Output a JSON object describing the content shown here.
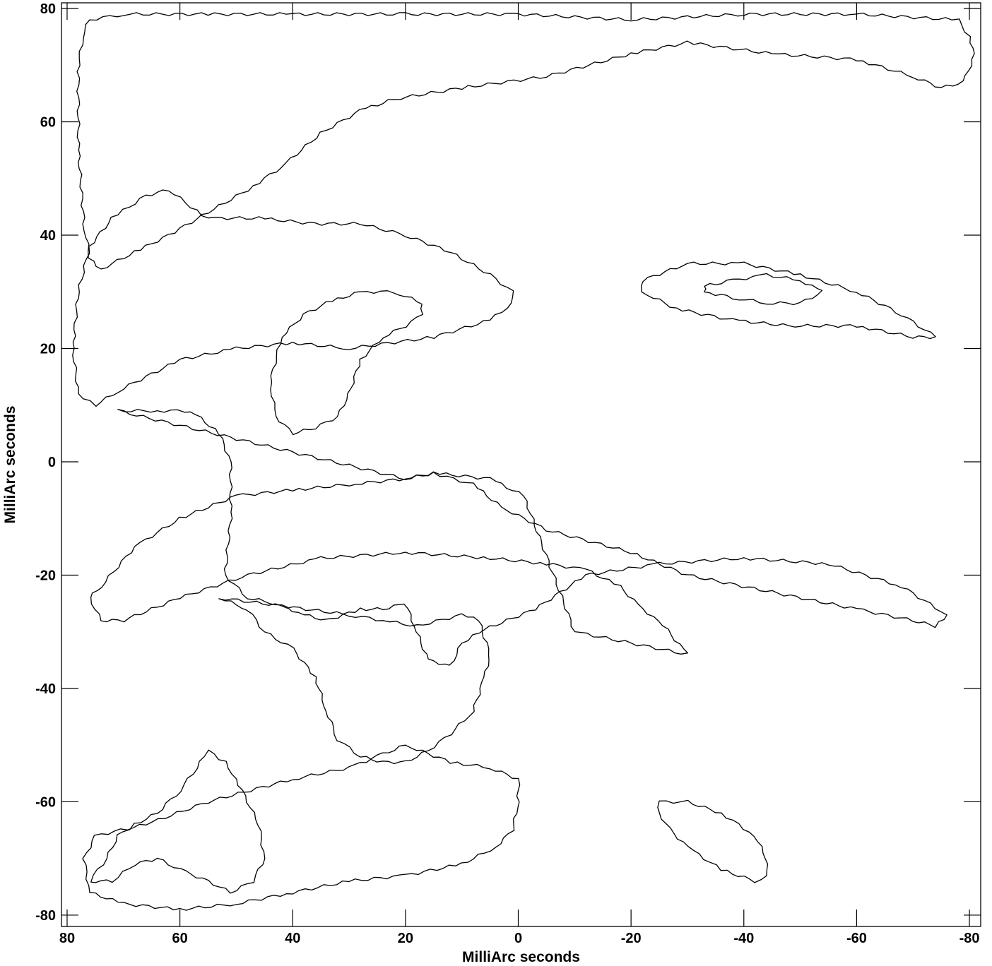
{
  "chart_data": {
    "type": "contour",
    "title": "",
    "xlabel": "MilliArc seconds",
    "ylabel": "MilliArc seconds",
    "xlim": [
      81,
      -82
    ],
    "ylim": [
      -82,
      81
    ],
    "x_ticks": [
      80,
      60,
      40,
      20,
      0,
      -20,
      -40,
      -60,
      -80
    ],
    "y_ticks": [
      80,
      60,
      40,
      20,
      0,
      -20,
      -40,
      -60,
      -80
    ],
    "x_tick_labels": [
      "80",
      "60",
      "40",
      "20",
      "0",
      "-20",
      "-40",
      "-60",
      "-80"
    ],
    "y_tick_labels": [
      "80",
      "60",
      "40",
      "20",
      "0",
      "-20",
      "-40",
      "-60",
      "-80"
    ],
    "grid": false,
    "contour_color": "#000000",
    "contours": [
      {
        "id": "upper-band",
        "points": [
          [
            76,
            78
          ],
          [
            70,
            79
          ],
          [
            55,
            79
          ],
          [
            40,
            79
          ],
          [
            20,
            79
          ],
          [
            0,
            79
          ],
          [
            -20,
            78
          ],
          [
            -40,
            79
          ],
          [
            -60,
            79
          ],
          [
            -78,
            78
          ],
          [
            -80,
            75
          ],
          [
            -81,
            72
          ],
          [
            -79,
            67
          ],
          [
            -75,
            66
          ],
          [
            -70,
            68
          ],
          [
            -60,
            71
          ],
          [
            -45,
            72
          ],
          [
            -30,
            74
          ],
          [
            -20,
            72
          ],
          [
            -5,
            68
          ],
          [
            10,
            66
          ],
          [
            22,
            64
          ],
          [
            28,
            62
          ],
          [
            35,
            58
          ],
          [
            42,
            52
          ],
          [
            48,
            48
          ],
          [
            55,
            44
          ],
          [
            62,
            40
          ],
          [
            68,
            37
          ],
          [
            74,
            34
          ],
          [
            76,
            36
          ],
          [
            77,
            42
          ],
          [
            78,
            55
          ],
          [
            78,
            70
          ],
          [
            77,
            76
          ]
        ]
      },
      {
        "id": "right-outer-upper",
        "points": [
          [
            1,
            30
          ],
          [
            5,
            33
          ],
          [
            12,
            37
          ],
          [
            20,
            40
          ],
          [
            28,
            42
          ],
          [
            36,
            42
          ],
          [
            46,
            43
          ],
          [
            55,
            43
          ],
          [
            58,
            45
          ],
          [
            62,
            48
          ],
          [
            66,
            47
          ],
          [
            72,
            43
          ],
          [
            76,
            38
          ],
          [
            78,
            30
          ],
          [
            79,
            20
          ],
          [
            78,
            12
          ],
          [
            75,
            10
          ],
          [
            70,
            13
          ],
          [
            60,
            18
          ],
          [
            50,
            20
          ],
          [
            40,
            21
          ],
          [
            30,
            20
          ],
          [
            15,
            22
          ],
          [
            5,
            25
          ],
          [
            1,
            28
          ]
        ]
      },
      {
        "id": "right-middle-upper",
        "points": [
          [
            -22,
            32
          ],
          [
            -30,
            35
          ],
          [
            -40,
            35
          ],
          [
            -50,
            33
          ],
          [
            -60,
            30
          ],
          [
            -68,
            26
          ],
          [
            -74,
            22
          ],
          [
            -70,
            22
          ],
          [
            -60,
            24
          ],
          [
            -48,
            24
          ],
          [
            -38,
            25
          ],
          [
            -28,
            27
          ],
          [
            -22,
            30
          ]
        ]
      },
      {
        "id": "right-inner-upper",
        "points": [
          [
            -33,
            31
          ],
          [
            -38,
            32
          ],
          [
            -44,
            33
          ],
          [
            -50,
            32
          ],
          [
            -54,
            30
          ],
          [
            -50,
            28
          ],
          [
            -44,
            28
          ],
          [
            -38,
            29
          ],
          [
            -33,
            30
          ]
        ]
      },
      {
        "id": "center-arc",
        "points": [
          [
            17,
            28
          ],
          [
            22,
            30
          ],
          [
            28,
            30
          ],
          [
            34,
            28
          ],
          [
            38,
            26
          ],
          [
            42,
            22
          ],
          [
            44,
            14
          ],
          [
            43,
            8
          ],
          [
            40,
            5
          ],
          [
            36,
            6
          ],
          [
            32,
            8
          ],
          [
            30,
            12
          ],
          [
            28,
            18
          ],
          [
            24,
            22
          ],
          [
            20,
            24
          ],
          [
            17,
            26
          ]
        ]
      },
      {
        "id": "left-lobe",
        "points": [
          [
            71,
            9
          ],
          [
            64,
            9
          ],
          [
            58,
            9
          ],
          [
            53,
            5
          ],
          [
            51,
            0
          ],
          [
            51,
            -10
          ],
          [
            52,
            -20
          ],
          [
            48,
            -24
          ],
          [
            43,
            -25
          ],
          [
            38,
            -27
          ],
          [
            34,
            -28
          ],
          [
            28,
            -26
          ],
          [
            24,
            -26
          ],
          [
            20,
            -25
          ],
          [
            18,
            -30
          ],
          [
            16,
            -35
          ],
          [
            12,
            -36
          ],
          [
            10,
            -32
          ],
          [
            7,
            -30
          ],
          [
            -3,
            -26
          ],
          [
            -12,
            -20
          ],
          [
            -25,
            -18
          ],
          [
            -40,
            -17
          ],
          [
            -55,
            -18
          ],
          [
            -68,
            -22
          ],
          [
            -76,
            -27
          ],
          [
            -74,
            -29
          ],
          [
            -70,
            -28
          ],
          [
            -60,
            -26
          ],
          [
            -45,
            -23
          ],
          [
            -30,
            -20
          ],
          [
            -20,
            -16
          ],
          [
            -5,
            -12
          ],
          [
            3,
            -8
          ],
          [
            8,
            -4
          ],
          [
            15,
            -2
          ],
          [
            20,
            -3
          ]
        ]
      },
      {
        "id": "right-lower-outer",
        "points": [
          [
            -1,
            -6
          ],
          [
            5,
            -3
          ],
          [
            15,
            -2
          ],
          [
            20,
            -3
          ],
          [
            30,
            -4
          ],
          [
            40,
            -5
          ],
          [
            50,
            -6
          ],
          [
            60,
            -10
          ],
          [
            68,
            -15
          ],
          [
            74,
            -22
          ],
          [
            76,
            -24
          ],
          [
            74,
            -28
          ],
          [
            70,
            -28
          ],
          [
            60,
            -24
          ],
          [
            48,
            -20
          ],
          [
            35,
            -17
          ],
          [
            20,
            -16
          ],
          [
            5,
            -17
          ],
          [
            -5,
            -18
          ],
          [
            -12,
            -19
          ],
          [
            -18,
            -22
          ],
          [
            -22,
            -26
          ],
          [
            -25,
            -28
          ],
          [
            -30,
            -34
          ],
          [
            -10,
            -30
          ]
        ]
      },
      {
        "id": "lower-loop",
        "points": [
          [
            53,
            -24
          ],
          [
            48,
            -26
          ],
          [
            45,
            -30
          ],
          [
            40,
            -33
          ],
          [
            36,
            -38
          ],
          [
            34,
            -44
          ],
          [
            32,
            -49
          ],
          [
            28,
            -52
          ],
          [
            24,
            -53
          ],
          [
            20,
            -53
          ],
          [
            16,
            -51
          ],
          [
            12,
            -48
          ],
          [
            8,
            -44
          ],
          [
            6,
            -38
          ],
          [
            5,
            -34
          ],
          [
            7,
            -28
          ],
          [
            10,
            -27
          ],
          [
            18,
            -29
          ],
          [
            24,
            -28
          ],
          [
            30,
            -27
          ]
        ]
      },
      {
        "id": "left-lower-cluster",
        "points": [
          [
            76,
            -74
          ],
          [
            73,
            -70
          ],
          [
            71,
            -66
          ],
          [
            68,
            -64
          ],
          [
            64,
            -62
          ],
          [
            60,
            -58
          ],
          [
            57,
            -54
          ],
          [
            55,
            -51
          ],
          [
            52,
            -53
          ],
          [
            50,
            -56
          ],
          [
            48,
            -60
          ],
          [
            46,
            -64
          ],
          [
            45,
            -70
          ],
          [
            47,
            -74
          ],
          [
            51,
            -76
          ],
          [
            55,
            -74
          ],
          [
            60,
            -72
          ],
          [
            64,
            -70
          ],
          [
            68,
            -71
          ],
          [
            72,
            -74
          ]
        ]
      },
      {
        "id": "right-lower-outer-2",
        "points": [
          [
            0,
            -56
          ],
          [
            5,
            -54
          ],
          [
            12,
            -53
          ],
          [
            20,
            -50
          ],
          [
            25,
            -52
          ],
          [
            30,
            -54
          ],
          [
            40,
            -56
          ],
          [
            55,
            -60
          ],
          [
            66,
            -64
          ],
          [
            75,
            -66
          ],
          [
            77,
            -70
          ],
          [
            76,
            -76
          ],
          [
            70,
            -78
          ],
          [
            60,
            -79
          ],
          [
            50,
            -78
          ],
          [
            40,
            -76
          ],
          [
            30,
            -74
          ],
          [
            20,
            -73
          ],
          [
            10,
            -71
          ],
          [
            4,
            -68
          ],
          [
            1,
            -65
          ],
          [
            0,
            -60
          ]
        ]
      },
      {
        "id": "right-lower-inner",
        "points": [
          [
            -25,
            -60
          ],
          [
            -30,
            -60
          ],
          [
            -36,
            -62
          ],
          [
            -42,
            -66
          ],
          [
            -44,
            -70
          ],
          [
            -44,
            -73
          ],
          [
            -42,
            -74
          ],
          [
            -36,
            -72
          ],
          [
            -30,
            -68
          ],
          [
            -26,
            -64
          ],
          [
            -25,
            -62
          ]
        ]
      }
    ]
  }
}
